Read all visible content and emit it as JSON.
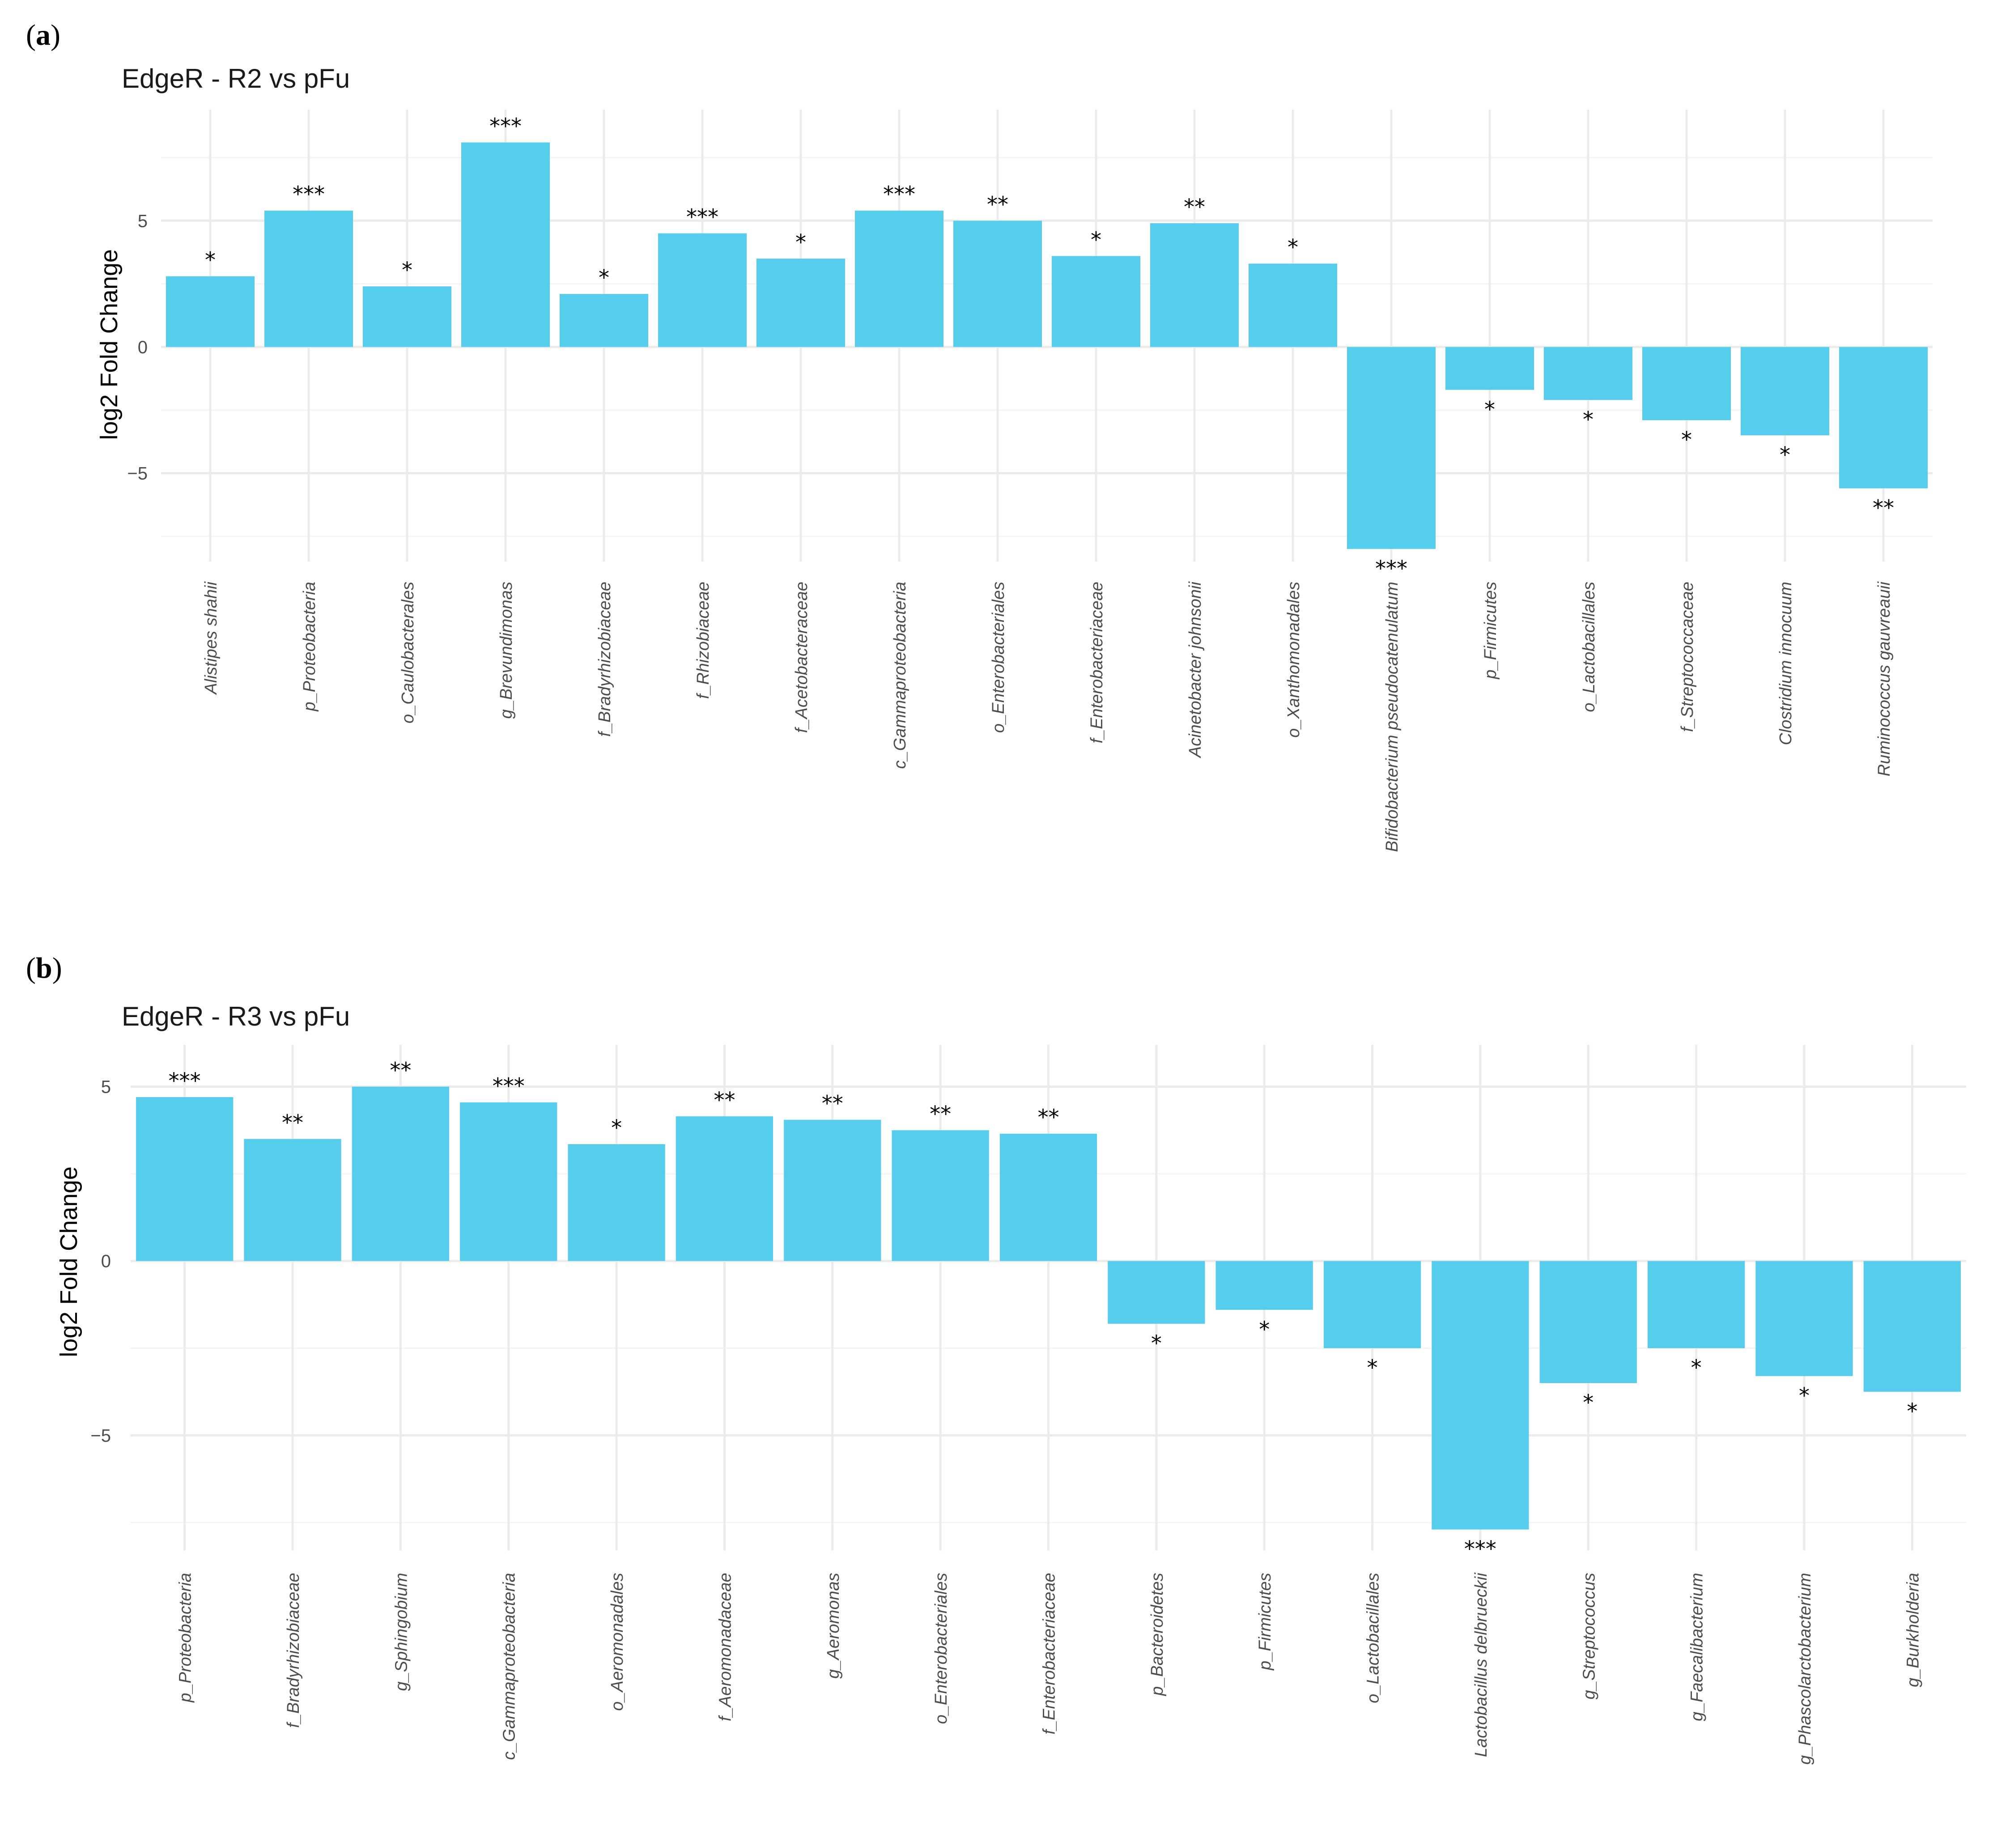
{
  "panels": [
    {
      "letter": "a"
    },
    {
      "letter": "b"
    }
  ],
  "chart_data": [
    {
      "type": "bar",
      "panel": "a",
      "title": "EdgeR - R2 vs pFu",
      "xlabel": "",
      "ylabel": "log2 Fold Change",
      "ylim": [
        -8.5,
        9.4
      ],
      "yticks": [
        -5,
        0,
        5
      ],
      "ytick_labels": [
        "−5",
        "0",
        "5"
      ],
      "grid": true,
      "bar_color": "#56cded",
      "categories": [
        "Alistipes  shahii",
        "p_Proteobacteria",
        "o_Caulobacterales",
        "g_Brevundimonas",
        "f_Bradyrhizobiaceae",
        "f_Rhizobiaceae",
        "f_Acetobacteraceae",
        "c_Gammaproteobacteria",
        "o_Enterobacteriales",
        "f_Enterobacteriaceae",
        "Acinetobacter  johnsonii",
        "o_Xanthomonadales",
        "Bifidobacterium  pseudocatenulatum",
        "p_Firmicutes",
        "o_Lactobacillales",
        "f_Streptococcaceae",
        "Clostridium  innocuum",
        "Ruminococcus  gauvreauii"
      ],
      "values": [
        2.8,
        5.4,
        2.4,
        8.1,
        2.1,
        4.5,
        3.5,
        5.4,
        5.0,
        3.6,
        4.9,
        3.3,
        -8.0,
        -1.7,
        -2.1,
        -2.9,
        -3.5,
        -5.6
      ],
      "significance": [
        "*",
        "***",
        "*",
        "***",
        "*",
        "***",
        "*",
        "***",
        "**",
        "*",
        "**",
        "*",
        "***",
        "*",
        "*",
        "*",
        "*",
        "**"
      ]
    },
    {
      "type": "bar",
      "panel": "b",
      "title": "EdgeR - R3 vs pFu",
      "xlabel": "",
      "ylabel": "log2 Fold Change",
      "ylim": [
        -8.3,
        6.2
      ],
      "yticks": [
        -5,
        0,
        5
      ],
      "ytick_labels": [
        "−5",
        "0",
        "5"
      ],
      "grid": true,
      "bar_color": "#56cded",
      "categories": [
        "p_Proteobacteria",
        "f_Bradyrhizobiaceae",
        "g_Sphingobium",
        "c_Gammaproteobacteria",
        "o_Aeromonadales",
        "f_Aeromonadaceae",
        "g_Aeromonas",
        "o_Enterobacteriales",
        "f_Enterobacteriaceae",
        "p_Bacteroidetes",
        "p_Firmicutes",
        "o_Lactobacillales",
        "Lactobacillus  delbrueckii",
        "g_Streptococcus",
        "g_Faecalibacterium",
        "g_Phascolarctobacterium",
        "g_Burkholderia"
      ],
      "values": [
        4.7,
        3.5,
        5.0,
        4.55,
        3.35,
        4.15,
        4.05,
        3.75,
        3.65,
        -1.8,
        -1.4,
        -2.5,
        -7.7,
        -3.5,
        -2.5,
        -3.3,
        -3.75
      ],
      "significance": [
        "***",
        "**",
        "**",
        "***",
        "*",
        "**",
        "**",
        "**",
        "**",
        "*",
        "*",
        "*",
        "***",
        "*",
        "*",
        "*",
        "*"
      ]
    }
  ]
}
